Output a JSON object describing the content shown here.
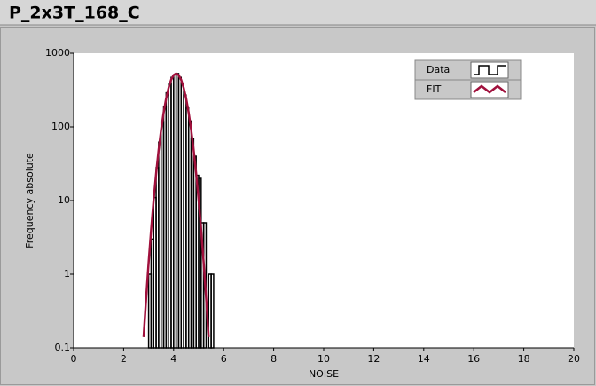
{
  "chart_data": {
    "type": "histogram",
    "title": "P_2x3T_168_C",
    "x_label": "NOISE",
    "y_label": "Frequency absolute",
    "xlim": [
      0,
      20
    ],
    "xticks": [
      0,
      2,
      4,
      6,
      8,
      10,
      12,
      14,
      16,
      18,
      20
    ],
    "ylim": [
      0.1,
      1000
    ],
    "yticks": [
      0.1,
      1,
      10,
      100,
      1000
    ],
    "y_scale": "log",
    "grid": false,
    "legend_position": "upper-right",
    "series": [
      {
        "name": "Data",
        "type": "histogram",
        "color": "#000000",
        "bins": [
          3.0,
          3.1,
          3.2,
          3.3,
          3.4,
          3.5,
          3.6,
          3.7,
          3.8,
          3.9,
          4.0,
          4.1,
          4.2,
          4.3,
          4.4,
          4.5,
          4.6,
          4.7,
          4.8,
          4.9,
          5.0,
          5.1,
          5.2,
          5.3,
          5.4,
          5.5,
          5.6
        ],
        "values": [
          1,
          3,
          11,
          28,
          62,
          118,
          190,
          290,
          380,
          470,
          510,
          530,
          470,
          390,
          270,
          180,
          120,
          70,
          40,
          22,
          20,
          5,
          5,
          0,
          1,
          1
        ]
      },
      {
        "name": "FIT",
        "type": "line",
        "color": "#a0103c",
        "x": [
          2.8,
          2.9,
          3.0,
          3.1,
          3.2,
          3.3,
          3.4,
          3.5,
          3.6,
          3.7,
          3.8,
          3.9,
          4.0,
          4.1,
          4.2,
          4.3,
          4.4,
          4.5,
          4.6,
          4.7,
          4.8,
          4.9,
          5.0,
          5.1,
          5.2,
          5.3,
          5.4
        ],
        "values": [
          0.14,
          0.47,
          1.44,
          4.0,
          10.2,
          23.3,
          48.4,
          91.4,
          156,
          243,
          341,
          436,
          505,
          530,
          505,
          436,
          341,
          243,
          156,
          91.4,
          48.4,
          23.3,
          10.2,
          4.0,
          1.44,
          0.47,
          0.14
        ]
      }
    ]
  }
}
